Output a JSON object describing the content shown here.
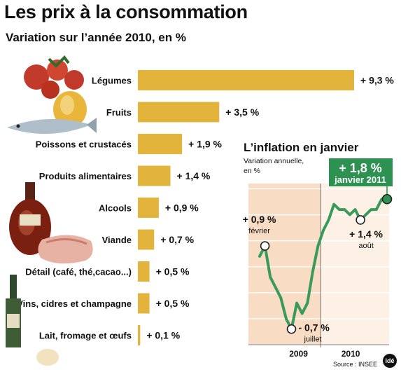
{
  "header": {
    "title": "Les prix à la consommation",
    "subtitle": "Variation sur l’année 2010, en %"
  },
  "chart_data": [
    {
      "type": "bar",
      "orientation": "horizontal",
      "categories": [
        "Légumes",
        "Fruits",
        "Poissons et crustacés",
        "Produits alimentaires",
        "Alcools",
        "Viande",
        "Détail (café, thé,cacao...)",
        "Vins, cidres et champagne",
        "Lait, fromage et œufs"
      ],
      "values": [
        9.3,
        3.5,
        1.9,
        1.4,
        0.9,
        0.7,
        0.5,
        0.5,
        0.1
      ],
      "value_labels": [
        "+ 9,3 %",
        "+ 3,5 %",
        "+ 1,9 %",
        "+ 1,4 %",
        "+ 0,9 %",
        "+ 0,7 %",
        "+ 0,5 %",
        "+ 0,5 %",
        "+ 0,1 %"
      ],
      "title": "Variation sur l’année 2010, en %",
      "bar_color": "#e3b43b",
      "grid": false
    },
    {
      "type": "line",
      "title": "L’inflation en janvier",
      "subtitle": "Variation annuelle, en %",
      "x": [
        "2009-01",
        "2009-02",
        "2009-03",
        "2009-04",
        "2009-05",
        "2009-06",
        "2009-07",
        "2009-08",
        "2009-09",
        "2009-10",
        "2009-11",
        "2009-12",
        "2010-01",
        "2010-02",
        "2010-03",
        "2010-04",
        "2010-05",
        "2010-06",
        "2010-07",
        "2010-08",
        "2010-09",
        "2010-10",
        "2010-11",
        "2010-12",
        "2011-01"
      ],
      "values": [
        0.7,
        0.9,
        0.3,
        0.1,
        -0.1,
        -0.5,
        -0.7,
        -0.2,
        -0.4,
        -0.2,
        0.4,
        0.9,
        1.2,
        1.4,
        1.7,
        1.6,
        1.6,
        1.5,
        1.6,
        1.4,
        1.5,
        1.6,
        1.6,
        1.8,
        1.8
      ],
      "x_tick_labels": [
        "2009",
        "2010"
      ],
      "annotations": [
        {
          "x": "2009-02",
          "label": "+ 0,9 %",
          "sublabel": "février"
        },
        {
          "x": "2009-07",
          "label": "- 0,7 %",
          "sublabel": "juillet"
        },
        {
          "x": "2010-08",
          "label": "+ 1,4 %",
          "sublabel": "août"
        }
      ],
      "highlight": {
        "x": "2011-01",
        "label": "+ 1,8 %",
        "sublabel": "janvier 2011"
      },
      "line_color": "#3a9a5b",
      "highlight_color": "#2d9152",
      "grid": true
    }
  ],
  "source": "Source : INSEE",
  "logo": "idé"
}
